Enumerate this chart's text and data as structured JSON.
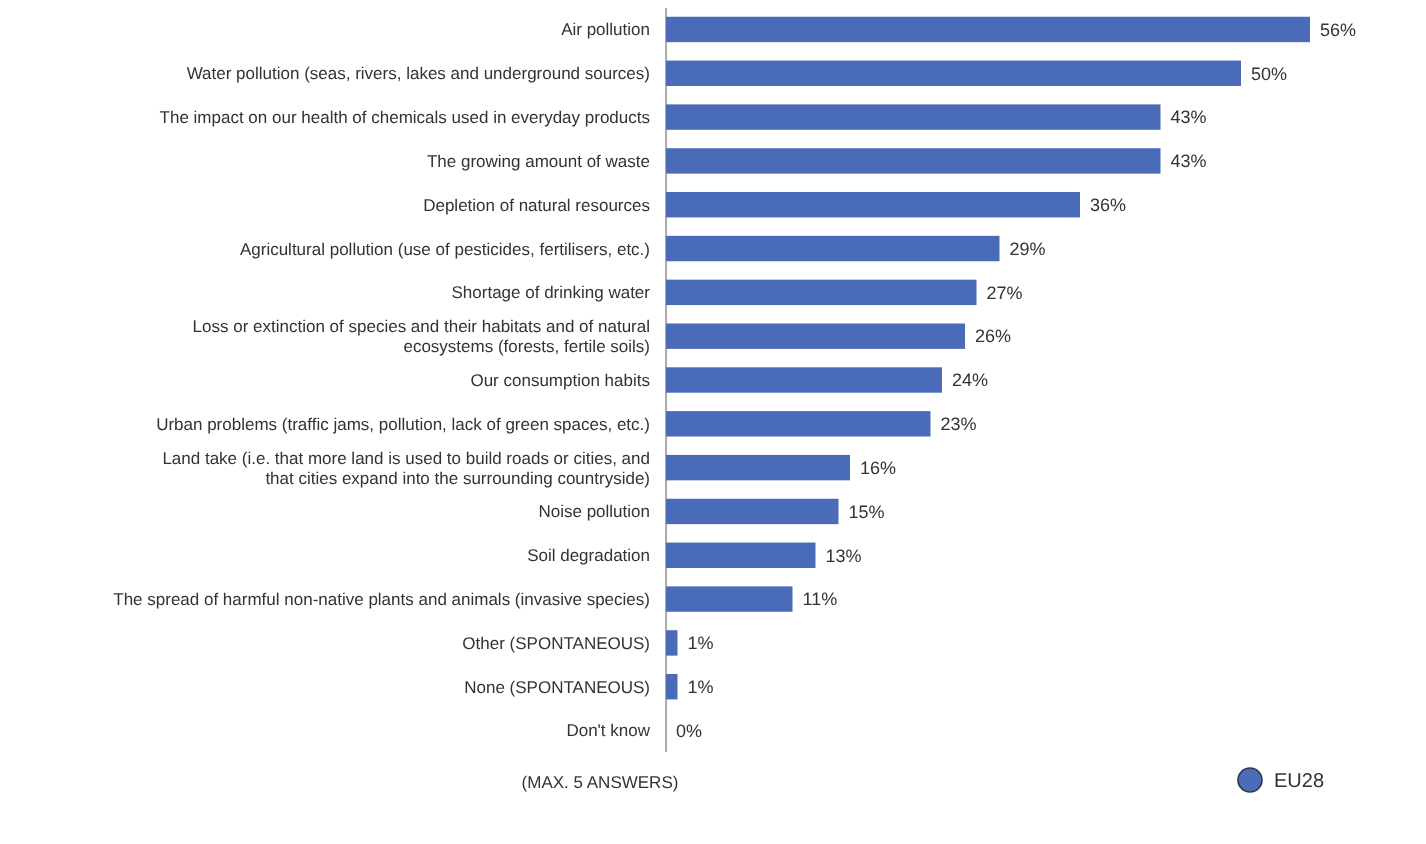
{
  "chart_data": {
    "type": "bar",
    "orientation": "horizontal",
    "categories": [
      "Air pollution",
      "Water pollution (seas, rivers, lakes and underground sources)",
      "The impact on our health of chemicals used in everyday products",
      "The growing amount of waste",
      "Depletion of natural resources",
      "Agricultural pollution (use of pesticides, fertilisers, etc.)",
      "Shortage of drinking water",
      "Loss or extinction of species and their habitats and of natural ecosystems (forests, fertile soils)",
      "Our consumption habits",
      "Urban problems (traffic jams, pollution, lack of green spaces, etc.)",
      "Land take (i.e. that more land is used to build roads or cities, and that cities expand into the surrounding countryside)",
      "Noise pollution",
      "Soil degradation",
      "The spread of harmful non-native plants and animals (invasive species)",
      "Other (SPONTANEOUS)",
      "None (SPONTANEOUS)",
      "Don't know"
    ],
    "series": [
      {
        "name": "EU28",
        "color": "#4a6cb8",
        "values": [
          56,
          50,
          43,
          43,
          36,
          29,
          27,
          26,
          24,
          23,
          16,
          15,
          13,
          11,
          1,
          1,
          0
        ],
        "value_labels": [
          "56%",
          "50%",
          "43%",
          "43%",
          "36%",
          "29%",
          "27%",
          "26%",
          "24%",
          "23%",
          "16%",
          "15%",
          "13%",
          "11%",
          "1%",
          "1%",
          "0%"
        ]
      }
    ],
    "legend": "bottom right",
    "annotations": [
      "(MAX. 5 ANSWERS)"
    ]
  }
}
